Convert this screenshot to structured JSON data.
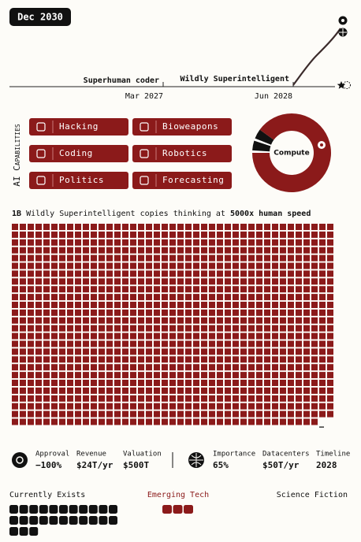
{
  "date_badge": "Dec 2030",
  "timeline": {
    "milestones": [
      {
        "label": "Superhuman coder",
        "date": "Mar 2027"
      },
      {
        "label": "Wildly Superintelligent",
        "date": "Jun 2028"
      }
    ]
  },
  "capabilities": {
    "title": "AI Capabilities",
    "items": [
      "Hacking",
      "Bioweapons",
      "Coding",
      "Robotics",
      "Politics",
      "Forecasting"
    ]
  },
  "compute": {
    "label": "Compute",
    "segments": [
      {
        "value": 1,
        "color": "#ffffff"
      },
      {
        "value": 4,
        "color": "#111111"
      },
      {
        "value": 1,
        "color": "#ffffff"
      },
      {
        "value": 4,
        "color": "#111111"
      },
      {
        "value": 90,
        "color": "#8b1a1a"
      }
    ]
  },
  "copies": {
    "count": "1B",
    "text": "Wildly Superintelligent copies thinking at",
    "speed": "5000x human speed",
    "ellipsis": "…"
  },
  "stats": {
    "left": [
      {
        "label": "Approval",
        "value": "−100%"
      },
      {
        "label": "Revenue",
        "value": "$24T/yr"
      },
      {
        "label": "Valuation",
        "value": "$500T"
      }
    ],
    "right": [
      {
        "label": "Importance",
        "value": "65%"
      },
      {
        "label": "Datacenters",
        "value": "$50T/yr"
      },
      {
        "label": "Timeline",
        "value": "2028"
      }
    ]
  },
  "tech_levels": [
    "Currently Exists",
    "Emerging Tech",
    "Science Fiction"
  ]
}
